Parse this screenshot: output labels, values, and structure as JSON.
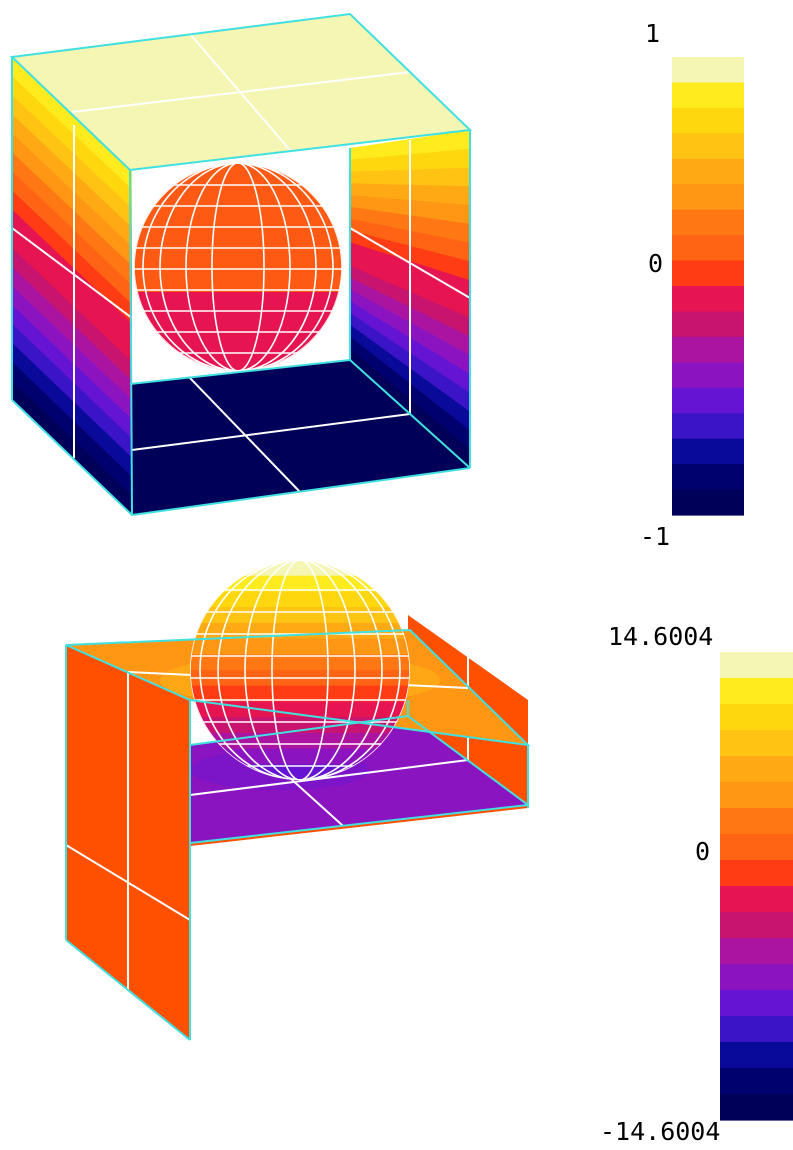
{
  "palette": [
    "#000058",
    "#00006e",
    "#0a0a9a",
    "#3c14c8",
    "#6414d2",
    "#8c14c0",
    "#aa14a0",
    "#c8146e",
    "#e61450",
    "#ff3c14",
    "#ff6414",
    "#ff7814",
    "#ff9614",
    "#ffaa14",
    "#ffc314",
    "#ffd70f",
    "#ffeb1e",
    "#f5f5b4"
  ],
  "colors": {
    "edge": "#40e0e0",
    "grid": "#ffffff"
  },
  "plot1": {
    "colorbar": {
      "max_label": "1",
      "mid_label": "0",
      "min_label": "-1",
      "range": [
        -1,
        1
      ]
    }
  },
  "plot2": {
    "colorbar": {
      "max_label": "14.6004",
      "mid_label": "0",
      "min_label": "-14.6004",
      "range": [
        -14.6004,
        14.6004
      ]
    }
  }
}
